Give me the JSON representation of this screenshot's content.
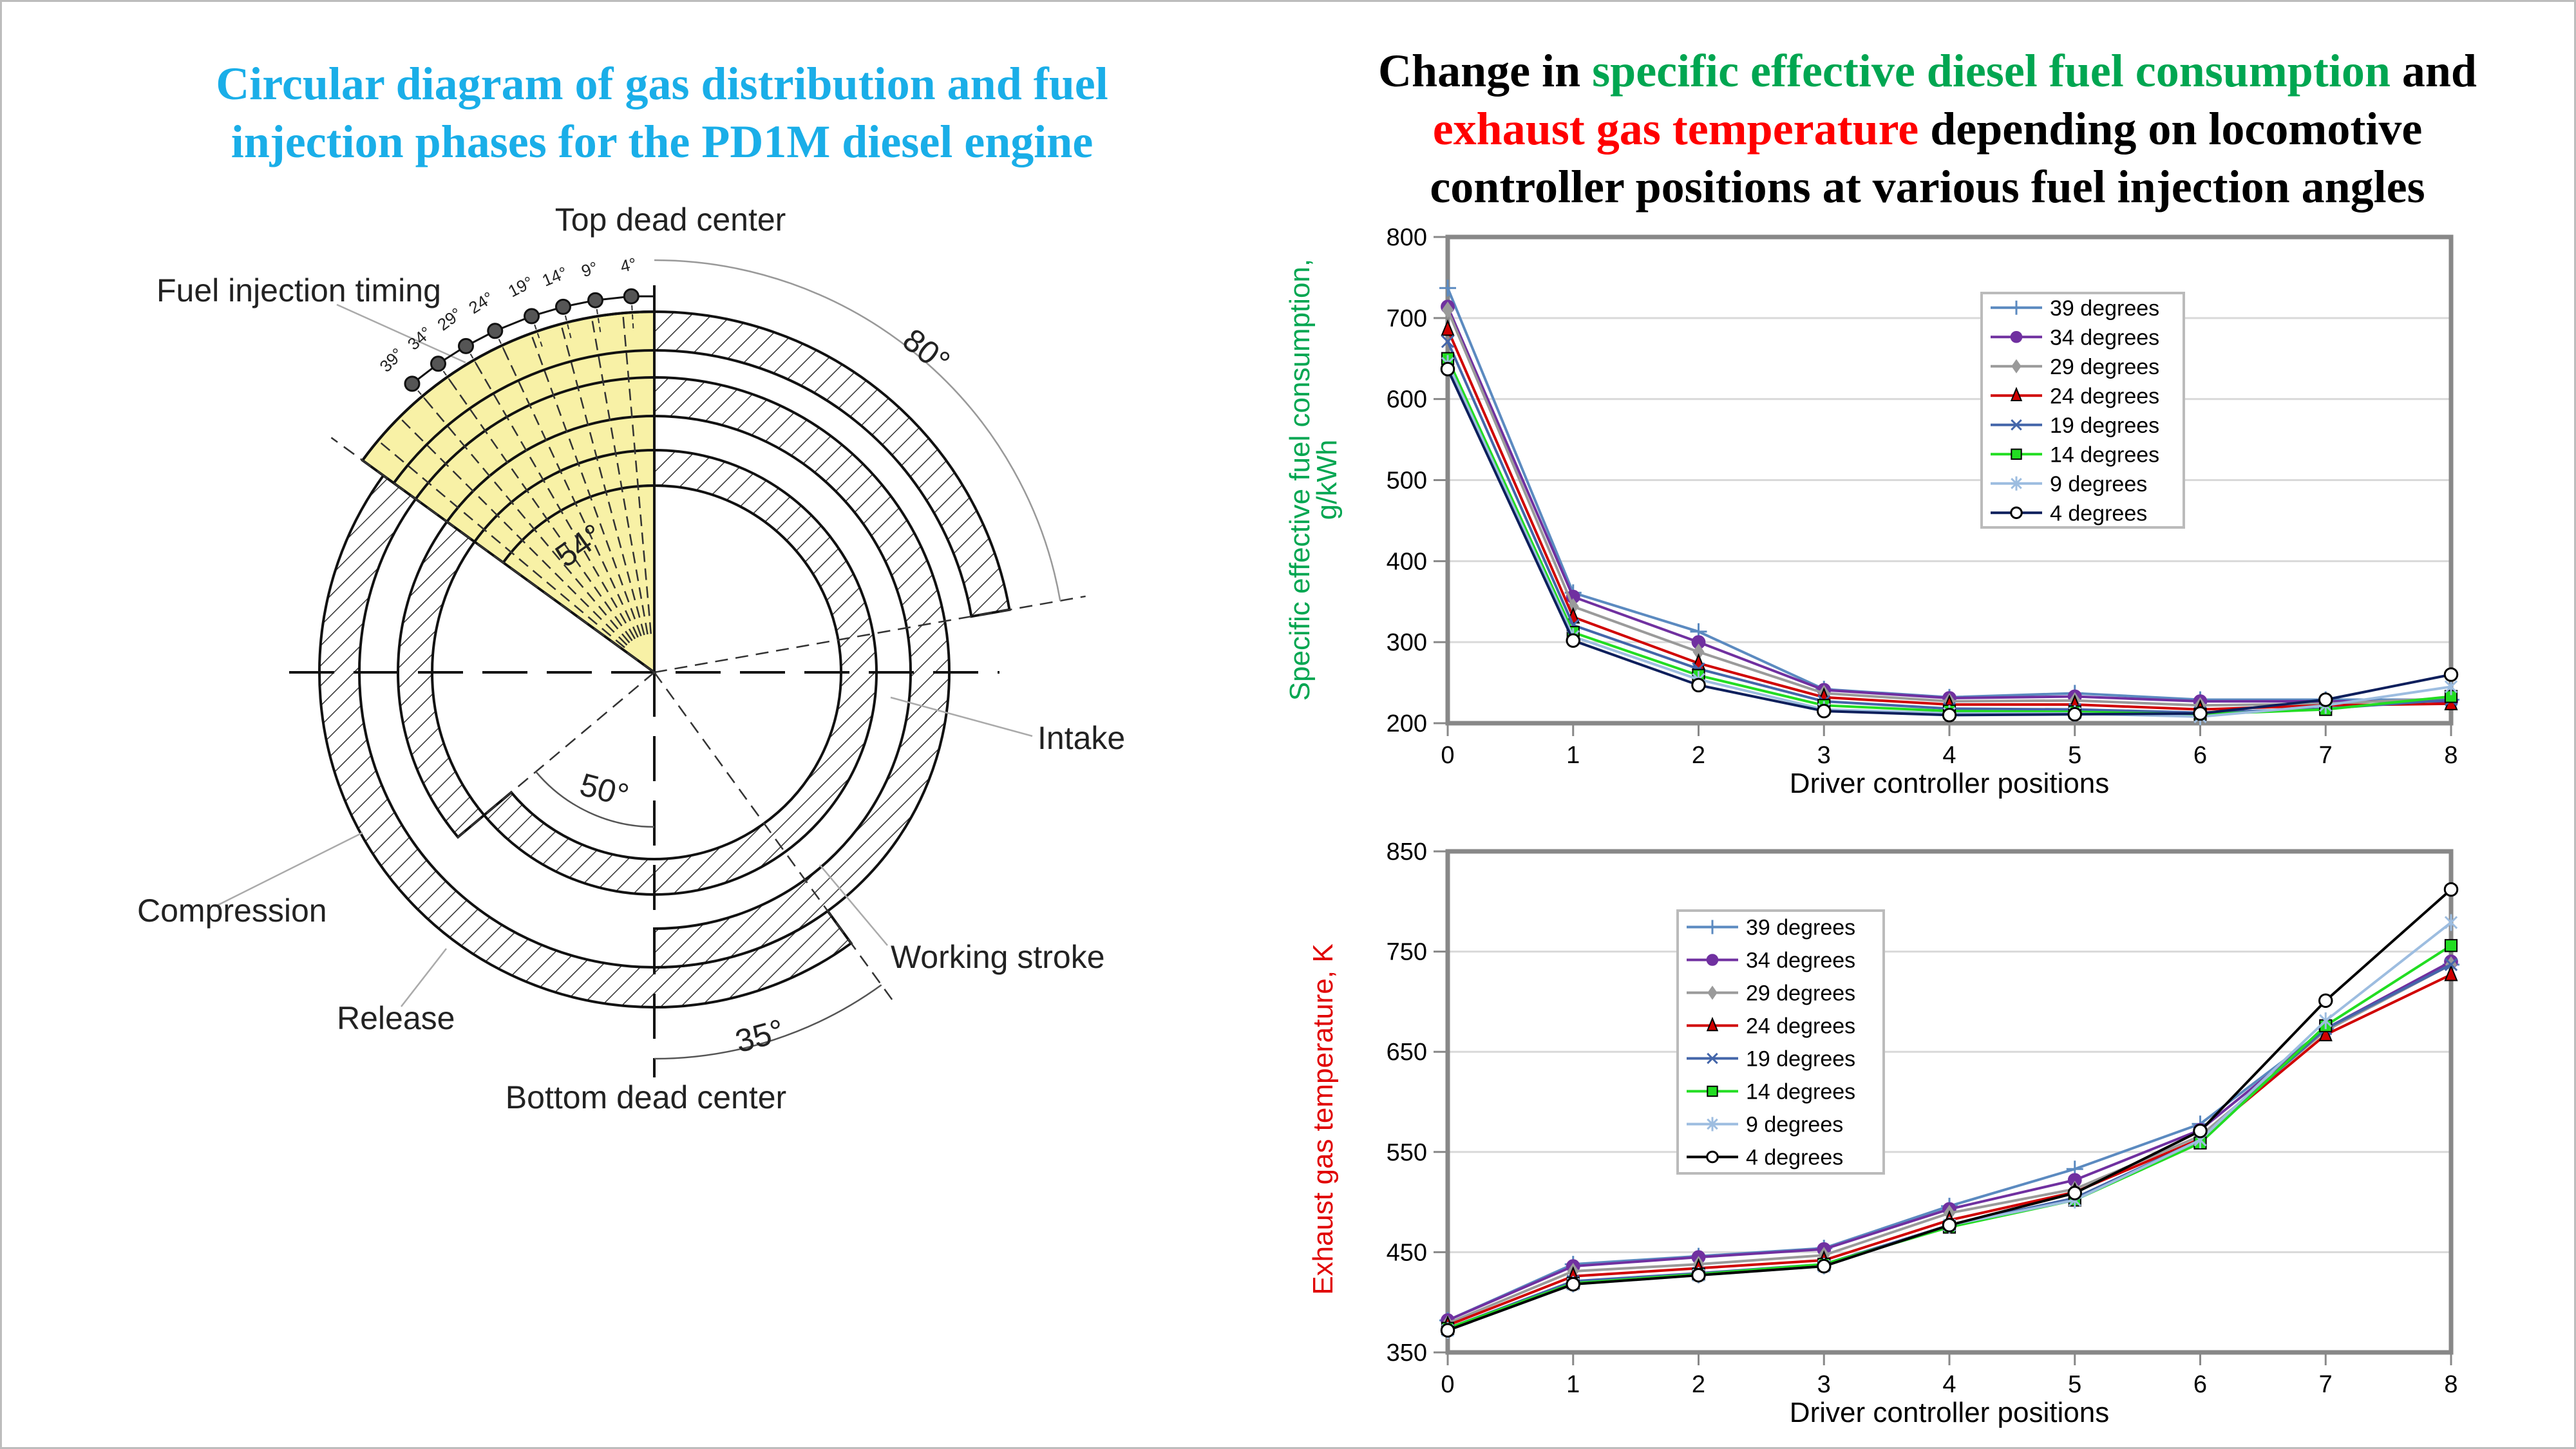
{
  "left_panel": {
    "title_lines": [
      "Circular diagram of gas distribution and fuel",
      "injection phases for the PD1M diesel engine"
    ],
    "diagram": {
      "labels": {
        "top_dead_center": "Top dead center",
        "bottom_dead_center": "Bottom dead center",
        "fuel_injection_timing": "Fuel injection timing",
        "intake": "Intake",
        "compression": "Compression",
        "working_stroke": "Working stroke",
        "release": "Release"
      },
      "angle_labels": {
        "a80": "80°",
        "a54": "54°",
        "a50": "50°",
        "a35": "35°"
      },
      "injection_angles": [
        "39°",
        "34°",
        "29°",
        "24°",
        "19°",
        "14°",
        "9°",
        "4°"
      ],
      "injection_sector_color": "#f8f1a6"
    }
  },
  "right_panel": {
    "title": {
      "part1": "Change in ",
      "part2_green": "specific effective diesel fuel consumption",
      "part3": " and",
      "part4_red": "exhaust gas temperature",
      "part5": " depending on locomotive",
      "part6": "controller positions at various fuel injection angles"
    }
  },
  "chart_data": [
    {
      "type": "line",
      "xlabel": "Driver controller positions",
      "ylabel_lines": [
        "Specific effective fuel consumption,",
        "g/kWh"
      ],
      "ylabel_color": "#00a651",
      "x": [
        0,
        1,
        2,
        3,
        4,
        5,
        6,
        7,
        8
      ],
      "ylim": [
        200,
        800
      ],
      "yticks": [
        200,
        300,
        400,
        500,
        600,
        700,
        800
      ],
      "grid": true,
      "legend": "upper-right",
      "series": [
        {
          "name": "39 degrees",
          "color": "#5b8ac0",
          "marker": "plus",
          "values": [
            737,
            361,
            313,
            242,
            232,
            237,
            229,
            229,
            229
          ]
        },
        {
          "name": "34 degrees",
          "color": "#7030a0",
          "marker": "circle",
          "values": [
            714,
            356,
            300,
            241,
            231,
            233,
            227,
            227,
            227
          ]
        },
        {
          "name": "29 degrees",
          "color": "#9a9a9a",
          "marker": "diamond",
          "values": [
            710,
            344,
            288,
            237,
            227,
            228,
            222,
            224,
            231
          ]
        },
        {
          "name": "24 degrees",
          "color": "#d00000",
          "marker": "triangle",
          "values": [
            686,
            331,
            274,
            232,
            223,
            223,
            217,
            222,
            224
          ]
        },
        {
          "name": "19 degrees",
          "color": "#4466aa",
          "marker": "x",
          "values": [
            671,
            321,
            267,
            227,
            218,
            217,
            213,
            218,
            229
          ]
        },
        {
          "name": "14 degrees",
          "color": "#22dd22",
          "marker": "square",
          "values": [
            650,
            312,
            259,
            222,
            215,
            214,
            211,
            217,
            233
          ]
        },
        {
          "name": "9 degrees",
          "color": "#9dbde0",
          "marker": "asterisk",
          "values": [
            644,
            307,
            254,
            217,
            212,
            212,
            208,
            222,
            245
          ]
        },
        {
          "name": "4 degrees",
          "color": "#0d1f5c",
          "marker": "open-circle",
          "values": [
            637,
            302,
            247,
            215,
            210,
            211,
            212,
            229,
            260
          ]
        }
      ]
    },
    {
      "type": "line",
      "xlabel": "Driver controller positions",
      "ylabel_lines": [
        "Exhaust gas temperature, K"
      ],
      "ylabel_color": "#e00000",
      "x": [
        0,
        1,
        2,
        3,
        4,
        5,
        6,
        7,
        8
      ],
      "ylim": [
        350,
        850
      ],
      "yticks": [
        350,
        450,
        550,
        650,
        750,
        850
      ],
      "grid": true,
      "legend": "upper-left",
      "series": [
        {
          "name": "39 degrees",
          "color": "#5b8ac0",
          "marker": "plus",
          "values": [
            382,
            438,
            446,
            454,
            496,
            533,
            578,
            673,
            737
          ]
        },
        {
          "name": "34 degrees",
          "color": "#7030a0",
          "marker": "circle",
          "values": [
            382,
            436,
            445,
            453,
            493,
            522,
            572,
            673,
            740
          ]
        },
        {
          "name": "29 degrees",
          "color": "#9a9a9a",
          "marker": "diamond",
          "values": [
            379,
            431,
            438,
            447,
            489,
            513,
            566,
            671,
            737
          ]
        },
        {
          "name": "24 degrees",
          "color": "#d00000",
          "marker": "triangle",
          "values": [
            377,
            426,
            434,
            442,
            482,
            510,
            563,
            667,
            727
          ]
        },
        {
          "name": "19 degrees",
          "color": "#4466aa",
          "marker": "x",
          "values": [
            374,
            421,
            429,
            438,
            477,
            504,
            562,
            673,
            737
          ]
        },
        {
          "name": "14 degrees",
          "color": "#22dd22",
          "marker": "square",
          "values": [
            374,
            419,
            428,
            438,
            475,
            502,
            559,
            676,
            756
          ]
        },
        {
          "name": "9 degrees",
          "color": "#9dbde0",
          "marker": "asterisk",
          "values": [
            372,
            418,
            427,
            436,
            477,
            502,
            562,
            681,
            779
          ]
        },
        {
          "name": "4 degrees",
          "color": "#000000",
          "marker": "open-circle",
          "values": [
            372,
            418,
            427,
            436,
            477,
            509,
            571,
            701,
            812
          ]
        }
      ]
    }
  ]
}
